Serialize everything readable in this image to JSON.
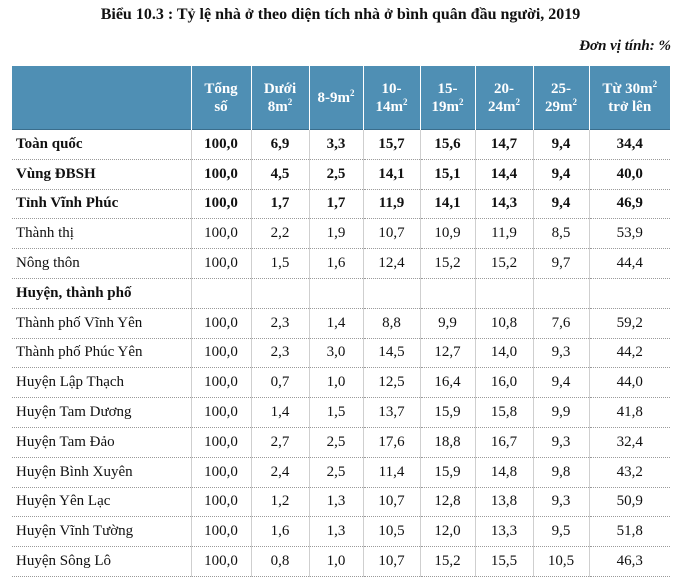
{
  "title": "Biểu 10.3 : Tỷ lệ nhà ở theo diện tích nhà ở bình quân đầu người, 2019",
  "unit": "Đơn vị tính: %",
  "headers": [
    {
      "l1": "",
      "l2": ""
    },
    {
      "l1": "Tổng",
      "l2": "số"
    },
    {
      "l1": "Dưới",
      "l2": "8m²"
    },
    {
      "l1": "8-9m²",
      "l2": ""
    },
    {
      "l1": "10-",
      "l2": "14m²"
    },
    {
      "l1": "15-",
      "l2": "19m²"
    },
    {
      "l1": "20-",
      "l2": "24m²"
    },
    {
      "l1": "25-",
      "l2": "29m²"
    },
    {
      "l1": "Từ 30m²",
      "l2": "trở lên"
    }
  ],
  "rows": [
    {
      "label": "Toàn quốc",
      "bold": true,
      "values": [
        "100,0",
        "6,9",
        "3,3",
        "15,7",
        "15,6",
        "14,7",
        "9,4",
        "34,4"
      ]
    },
    {
      "label": "Vùng ĐBSH",
      "bold": true,
      "values": [
        "100,0",
        "4,5",
        "2,5",
        "14,1",
        "15,1",
        "14,4",
        "9,4",
        "40,0"
      ]
    },
    {
      "label": "Tỉnh Vĩnh Phúc",
      "bold": true,
      "values": [
        "100,0",
        "1,7",
        "1,7",
        "11,9",
        "14,1",
        "14,3",
        "9,4",
        "46,9"
      ]
    },
    {
      "label": "Thành thị",
      "bold": false,
      "values": [
        "100,0",
        "2,2",
        "1,9",
        "10,7",
        "10,9",
        "11,9",
        "8,5",
        "53,9"
      ]
    },
    {
      "label": "Nông thôn",
      "bold": false,
      "values": [
        "100,0",
        "1,5",
        "1,6",
        "12,4",
        "15,2",
        "15,2",
        "9,7",
        "44,4"
      ]
    },
    {
      "label": "Huyện, thành phố",
      "bold": true,
      "values": [
        "",
        "",
        "",
        "",
        "",
        "",
        "",
        ""
      ]
    },
    {
      "label": "Thành phố Vĩnh Yên",
      "bold": false,
      "values": [
        "100,0",
        "2,3",
        "1,4",
        "8,8",
        "9,9",
        "10,8",
        "7,6",
        "59,2"
      ]
    },
    {
      "label": "Thành phố Phúc Yên",
      "bold": false,
      "values": [
        "100,0",
        "2,3",
        "3,0",
        "14,5",
        "12,7",
        "14,0",
        "9,3",
        "44,2"
      ]
    },
    {
      "label": "Huyện Lập Thạch",
      "bold": false,
      "values": [
        "100,0",
        "0,7",
        "1,0",
        "12,5",
        "16,4",
        "16,0",
        "9,4",
        "44,0"
      ]
    },
    {
      "label": "Huyện Tam Dương",
      "bold": false,
      "values": [
        "100,0",
        "1,4",
        "1,5",
        "13,7",
        "15,9",
        "15,8",
        "9,9",
        "41,8"
      ]
    },
    {
      "label": "Huyện Tam Đảo",
      "bold": false,
      "values": [
        "100,0",
        "2,7",
        "2,5",
        "17,6",
        "18,8",
        "16,7",
        "9,3",
        "32,4"
      ]
    },
    {
      "label": "Huyện Bình Xuyên",
      "bold": false,
      "values": [
        "100,0",
        "2,4",
        "2,5",
        "11,4",
        "15,9",
        "14,8",
        "9,8",
        "43,2"
      ]
    },
    {
      "label": "Huyện Yên Lạc",
      "bold": false,
      "values": [
        "100,0",
        "1,2",
        "1,3",
        "10,7",
        "12,8",
        "13,8",
        "9,3",
        "50,9"
      ]
    },
    {
      "label": "Huyện Vĩnh Tường",
      "bold": false,
      "values": [
        "100,0",
        "1,6",
        "1,3",
        "10,5",
        "12,0",
        "13,3",
        "9,5",
        "51,8"
      ]
    },
    {
      "label": "Huyện Sông Lô",
      "bold": false,
      "values": [
        "100,0",
        "0,8",
        "1,0",
        "10,7",
        "15,2",
        "15,5",
        "10,5",
        "46,3"
      ]
    }
  ]
}
